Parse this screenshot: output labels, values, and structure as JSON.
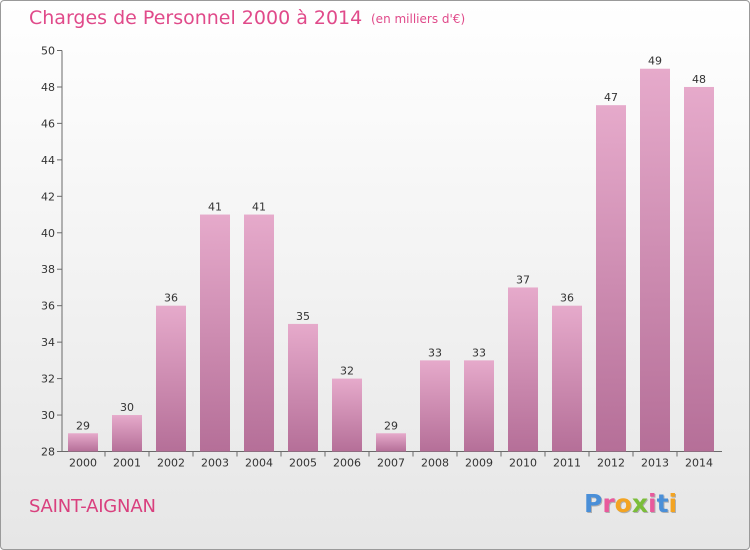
{
  "header": {
    "title": "Charges de Personnel 2000 à 2014",
    "unit": "(en milliers d'€)"
  },
  "footer": {
    "place": "SAINT-AIGNAN",
    "logo_text": "Proxiti"
  },
  "colors": {
    "accent": "#e04a8a",
    "bar_light": "#e6aacb",
    "bar_dark": "#b56f98",
    "logo_letters": [
      "#4a8fd8",
      "#e85a9c",
      "#f3a423",
      "#7bbd3a",
      "#e85a9c",
      "#4a8fd8",
      "#f3a423"
    ]
  },
  "chart_data": {
    "type": "bar",
    "categories": [
      "2000",
      "2001",
      "2002",
      "2003",
      "2004",
      "2005",
      "2006",
      "2007",
      "2008",
      "2009",
      "2010",
      "2011",
      "2012",
      "2013",
      "2014"
    ],
    "values": [
      29,
      30,
      36,
      41,
      41,
      35,
      32,
      29,
      33,
      33,
      37,
      36,
      47,
      49,
      48
    ],
    "title": "Charges de Personnel 2000 à 2014",
    "subtitle": "(en milliers d'€)",
    "ylim": [
      28,
      50
    ],
    "yticks": [
      28,
      30,
      32,
      34,
      36,
      38,
      40,
      42,
      44,
      46,
      48,
      50
    ],
    "grid": false,
    "data_labels": true
  }
}
